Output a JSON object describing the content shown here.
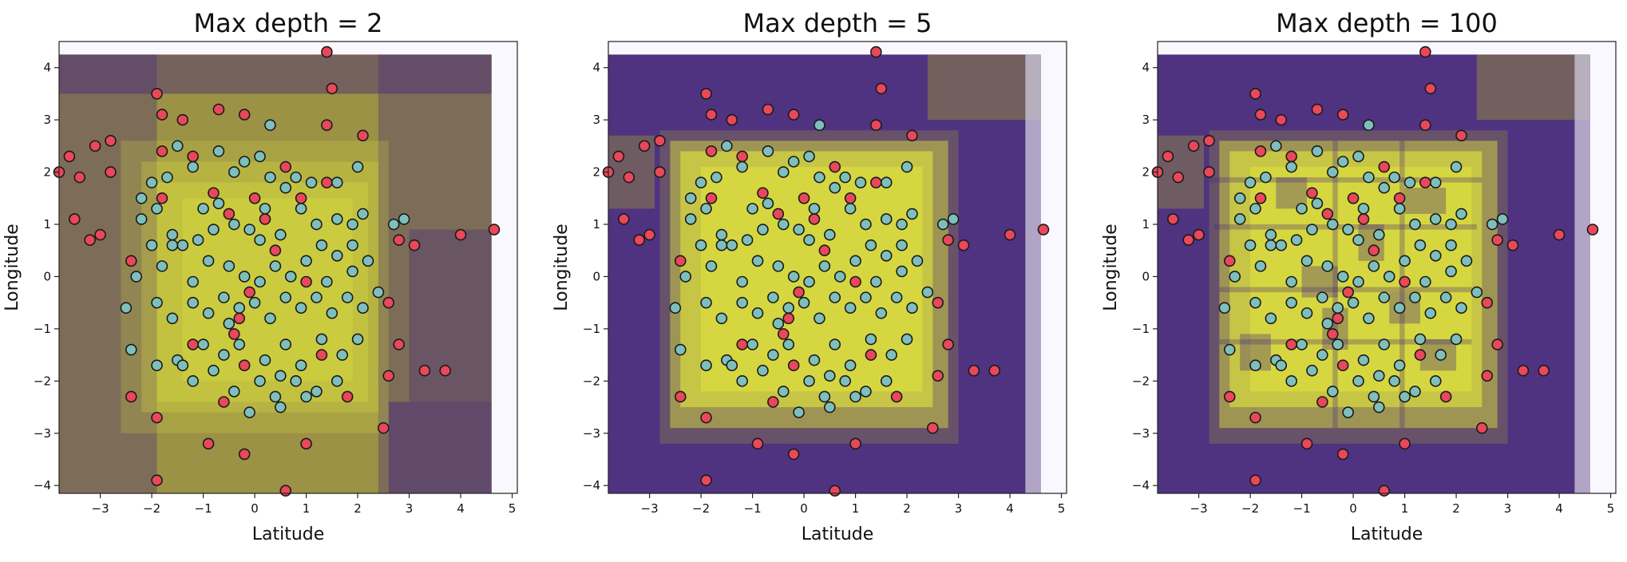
{
  "chart_data": [
    {
      "type": "scatter",
      "title": "Max depth = 2",
      "xlabel": "Latitude",
      "ylabel": "Longitude",
      "xlim": [
        -3.8,
        5.1
      ],
      "ylim": [
        -4.15,
        4.5
      ],
      "xticks": [
        -3,
        -2,
        -1,
        0,
        1,
        2,
        3,
        4,
        5
      ],
      "yticks": [
        -4,
        -3,
        -2,
        -1,
        0,
        1,
        2,
        3,
        4
      ],
      "grid": false,
      "legend": "none"
    },
    {
      "type": "scatter",
      "title": "Max depth = 5",
      "xlabel": "Latitude",
      "ylabel": "Longitude",
      "xlim": [
        -3.8,
        5.1
      ],
      "ylim": [
        -4.15,
        4.5
      ],
      "xticks": [
        -3,
        -2,
        -1,
        0,
        1,
        2,
        3,
        4,
        5
      ],
      "yticks": [
        -4,
        -3,
        -2,
        -1,
        0,
        1,
        2,
        3,
        4
      ],
      "grid": false,
      "legend": "none"
    },
    {
      "type": "scatter",
      "title": "Max depth = 100",
      "xlabel": "Latitude",
      "ylabel": "Longitude",
      "xlim": [
        -3.8,
        5.1
      ],
      "ylim": [
        -4.15,
        4.5
      ],
      "xticks": [
        -3,
        -2,
        -1,
        0,
        1,
        2,
        3,
        4,
        5
      ],
      "yticks": [
        -4,
        -3,
        -2,
        -1,
        0,
        1,
        2,
        3,
        4
      ],
      "grid": false,
      "legend": "none"
    }
  ],
  "points": {
    "class_outer": [
      [
        -3.8,
        2.0
      ],
      [
        -3.6,
        2.3
      ],
      [
        -3.4,
        1.9
      ],
      [
        -3.5,
        1.1
      ],
      [
        -3.1,
        2.5
      ],
      [
        -2.8,
        2.0
      ],
      [
        -2.8,
        2.6
      ],
      [
        -3.2,
        0.7
      ],
      [
        -3.0,
        0.8
      ],
      [
        -1.9,
        3.5
      ],
      [
        -1.8,
        3.1
      ],
      [
        -1.4,
        3.0
      ],
      [
        -0.7,
        3.2
      ],
      [
        -0.2,
        3.1
      ],
      [
        1.4,
        4.3
      ],
      [
        1.5,
        3.6
      ],
      [
        1.4,
        2.9
      ],
      [
        2.1,
        2.7
      ],
      [
        -1.8,
        2.4
      ],
      [
        -1.8,
        1.5
      ],
      [
        -1.2,
        2.3
      ],
      [
        -0.8,
        1.6
      ],
      [
        0.0,
        1.5
      ],
      [
        0.6,
        2.1
      ],
      [
        0.9,
        1.5
      ],
      [
        1.4,
        1.8
      ],
      [
        -2.4,
        0.3
      ],
      [
        -0.5,
        1.2
      ],
      [
        0.2,
        1.1
      ],
      [
        0.4,
        0.5
      ],
      [
        2.8,
        0.7
      ],
      [
        3.1,
        0.6
      ],
      [
        4.0,
        0.8
      ],
      [
        4.65,
        0.9
      ],
      [
        1.0,
        -0.1
      ],
      [
        -0.1,
        -0.3
      ],
      [
        -0.3,
        -0.8
      ],
      [
        -1.2,
        -1.3
      ],
      [
        -0.4,
        -1.1
      ],
      [
        -0.2,
        -1.7
      ],
      [
        1.3,
        -1.5
      ],
      [
        2.6,
        -0.5
      ],
      [
        2.8,
        -1.3
      ],
      [
        1.8,
        -2.3
      ],
      [
        2.6,
        -1.9
      ],
      [
        3.3,
        -1.8
      ],
      [
        3.7,
        -1.8
      ],
      [
        -0.6,
        -2.4
      ],
      [
        -2.4,
        -2.3
      ],
      [
        -1.9,
        -2.7
      ],
      [
        -0.9,
        -3.2
      ],
      [
        -0.2,
        -3.4
      ],
      [
        1.0,
        -3.2
      ],
      [
        2.5,
        -2.9
      ],
      [
        -1.9,
        -3.9
      ],
      [
        0.6,
        -4.1
      ]
    ],
    "class_inner": [
      [
        -2.2,
        1.5
      ],
      [
        -2.0,
        1.8
      ],
      [
        -1.7,
        1.9
      ],
      [
        -1.5,
        2.5
      ],
      [
        -1.2,
        2.1
      ],
      [
        -0.7,
        2.4
      ],
      [
        -0.4,
        2.0
      ],
      [
        -0.2,
        2.2
      ],
      [
        0.3,
        2.9
      ],
      [
        0.1,
        2.3
      ],
      [
        0.3,
        1.9
      ],
      [
        0.6,
        1.7
      ],
      [
        1.1,
        1.8
      ],
      [
        1.6,
        1.8
      ],
      [
        2.0,
        2.1
      ],
      [
        -2.2,
        1.1
      ],
      [
        -1.9,
        1.3
      ],
      [
        -1.6,
        0.8
      ],
      [
        -1.4,
        0.6
      ],
      [
        -1.0,
        1.3
      ],
      [
        -0.7,
        1.4
      ],
      [
        -0.4,
        1.0
      ],
      [
        -0.1,
        0.9
      ],
      [
        0.1,
        0.7
      ],
      [
        0.5,
        0.8
      ],
      [
        0.9,
        1.3
      ],
      [
        1.2,
        1.0
      ],
      [
        1.6,
        1.1
      ],
      [
        1.9,
        1.0
      ],
      [
        2.1,
        1.2
      ],
      [
        2.7,
        1.0
      ],
      [
        2.9,
        1.1
      ],
      [
        -2.5,
        -0.6
      ],
      [
        -2.3,
        0.0
      ],
      [
        -1.8,
        0.2
      ],
      [
        -1.6,
        0.6
      ],
      [
        -1.2,
        -0.1
      ],
      [
        -0.9,
        0.3
      ],
      [
        -0.5,
        0.2
      ],
      [
        -0.2,
        0.0
      ],
      [
        0.1,
        -0.1
      ],
      [
        0.4,
        0.2
      ],
      [
        0.7,
        0.0
      ],
      [
        1.0,
        0.3
      ],
      [
        1.3,
        0.6
      ],
      [
        1.6,
        0.4
      ],
      [
        1.9,
        0.6
      ],
      [
        2.2,
        0.3
      ],
      [
        -1.9,
        -0.5
      ],
      [
        -1.6,
        -0.8
      ],
      [
        -1.2,
        -0.5
      ],
      [
        -0.9,
        -0.7
      ],
      [
        -0.6,
        -0.4
      ],
      [
        -0.3,
        -0.6
      ],
      [
        0.0,
        -0.5
      ],
      [
        0.3,
        -0.8
      ],
      [
        0.6,
        -0.4
      ],
      [
        0.9,
        -0.6
      ],
      [
        1.2,
        -0.4
      ],
      [
        1.5,
        -0.7
      ],
      [
        1.8,
        -0.4
      ],
      [
        2.1,
        -0.6
      ],
      [
        2.4,
        -0.3
      ],
      [
        -2.4,
        -1.4
      ],
      [
        -1.9,
        -1.7
      ],
      [
        -1.5,
        -1.6
      ],
      [
        -1.0,
        -1.3
      ],
      [
        -0.6,
        -1.5
      ],
      [
        -0.3,
        -1.3
      ],
      [
        0.2,
        -1.6
      ],
      [
        0.6,
        -1.3
      ],
      [
        0.9,
        -1.7
      ],
      [
        1.3,
        -1.2
      ],
      [
        1.7,
        -1.5
      ],
      [
        2.0,
        -1.2
      ],
      [
        -1.2,
        -2.0
      ],
      [
        -0.8,
        -1.8
      ],
      [
        -0.4,
        -2.2
      ],
      [
        0.1,
        -2.0
      ],
      [
        0.4,
        -2.3
      ],
      [
        0.8,
        -2.0
      ],
      [
        1.2,
        -2.2
      ],
      [
        1.6,
        -2.0
      ],
      [
        -0.1,
        -2.6
      ],
      [
        0.5,
        -2.5
      ],
      [
        1.0,
        -2.3
      ],
      [
        -1.4,
        -1.7
      ],
      [
        -0.8,
        0.9
      ],
      [
        0.2,
        1.3
      ],
      [
        1.4,
        -0.1
      ],
      [
        -2.0,
        0.6
      ],
      [
        0.8,
        1.9
      ],
      [
        -1.1,
        0.7
      ],
      [
        0.5,
        -1.9
      ],
      [
        1.9,
        0.1
      ],
      [
        -0.5,
        -0.9
      ]
    ]
  },
  "colors": {
    "class_outer": "#e8485a",
    "class_inner": "#7fbfbb",
    "region_inner": "#e2e63c",
    "region_outer": "#46287a",
    "region_mixed": "#968c3c",
    "marker_edge": "#1a1a1a"
  }
}
